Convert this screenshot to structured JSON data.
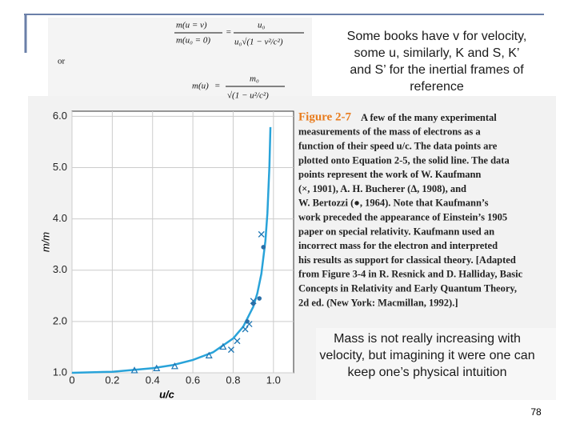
{
  "slide": {
    "note_top": [
      "Some books have v for velocity,",
      "some u, similarly, K and S, K’",
      "and S’ for the inertial frames of",
      "reference"
    ],
    "note_bottom": [
      "Mass is not really increasing with",
      "velocity, but imagining it were one can",
      "keep one’s physical intuition"
    ],
    "page_number": "78",
    "formula": {
      "lhs1": "m(u = v)",
      "lhs1_den": "m(u₀ = 0)",
      "rhs1_num": "u₀",
      "rhs1_den": "u₀√(1 − v²/c²)",
      "or": "or",
      "lhs2": "m(u)",
      "rhs2_num": "m₀",
      "rhs2_den": "√(1 − u²/c²)",
      "eq": "="
    },
    "caption": {
      "label": "Figure 2-7",
      "lines": [
        "A few of the many experimental",
        "measurements of the mass of electrons as a",
        "function of their speed u/c. The data points are",
        "plotted onto Equation 2-5, the solid line. The data",
        "points represent the work of W. Kaufmann",
        "(×, 1901), A. H. Bucherer (Δ, 1908), and",
        "W. Bertozzi (●, 1964). Note that Kaufmann’s",
        "work preceded the appearance of Einstein’s 1905",
        "paper on special relativity. Kaufmann used an",
        "incorrect mass for the electron and interpreted",
        "his results as support for classical theory. [Adapted",
        "from Figure 3-4 in R. Resnick and D. Halliday, Basic",
        "Concepts in Relativity and Early Quantum Theory,",
        "2d ed. (New York: Macmillan, 1992).]"
      ]
    }
  },
  "chart_data": {
    "type": "line",
    "x_label": "u/c",
    "y_label": "m/m",
    "xlim": [
      0,
      1.1
    ],
    "ylim": [
      1,
      6.1
    ],
    "xticks": [
      0,
      0.2,
      0.4,
      0.6,
      0.8,
      {
        "value": 1,
        "label": "1.0"
      }
    ],
    "yticks": [
      {
        "value": 1,
        "label": "1.0"
      },
      {
        "value": 2,
        "label": "2.0"
      },
      {
        "value": 3,
        "label": "3.0"
      },
      {
        "value": 4,
        "label": "4.0"
      },
      {
        "value": 5,
        "label": "5.0"
      },
      {
        "value": 6,
        "label": "6.0"
      }
    ],
    "grid": true,
    "series": [
      {
        "marker": "line",
        "color": "#29a3d9",
        "x": [
          0,
          0.2,
          0.4,
          0.5,
          0.6,
          0.7,
          0.8,
          0.85,
          0.9,
          0.92,
          0.94,
          0.96,
          0.97,
          0.98,
          0.985
        ],
        "values": [
          1,
          1.02,
          1.09,
          1.15,
          1.25,
          1.4,
          1.67,
          1.9,
          2.29,
          2.55,
          2.93,
          3.57,
          4.11,
          5.03,
          5.79
        ]
      },
      {
        "marker": "x",
        "color": "#1f77b4",
        "x": [
          0.79,
          0.82,
          0.86,
          0.88,
          0.9,
          0.94
        ],
        "values": [
          1.45,
          1.62,
          1.85,
          1.95,
          2.4,
          3.7
        ]
      },
      {
        "marker": "triangle",
        "color": "#1f77b4",
        "x": [
          0.31,
          0.42,
          0.51,
          0.68,
          0.75
        ],
        "values": [
          1.04,
          1.08,
          1.12,
          1.33,
          1.5
        ]
      },
      {
        "marker": "circle",
        "color": "#2a6fa8",
        "x": [
          0.87,
          0.9,
          0.93,
          0.95
        ],
        "values": [
          2.0,
          2.35,
          2.45,
          3.45
        ]
      }
    ]
  }
}
